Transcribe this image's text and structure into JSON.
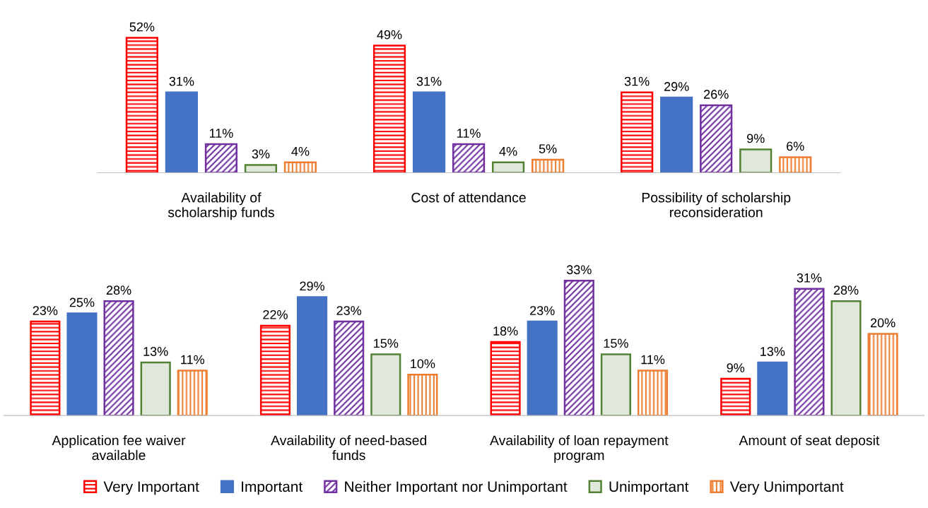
{
  "chart_data": [
    {
      "type": "bar",
      "categories": [
        "Availability of\nscholarship funds",
        "Cost of attendance",
        "Possibility of scholarship\nreconsideration"
      ],
      "series": [
        {
          "color": "#ff0000",
          "values": [
            52,
            49,
            31
          ],
          "value_labels": [
            "52%",
            "49%",
            "31%"
          ]
        },
        {
          "color": "#4472c4",
          "values": [
            31,
            31,
            29
          ],
          "value_labels": [
            "31%",
            "31%",
            "29%"
          ]
        },
        {
          "color": "#7030a0",
          "values": [
            11,
            11,
            26
          ],
          "value_labels": [
            "11%",
            "11%",
            "26%"
          ]
        },
        {
          "color": "#548235",
          "values": [
            3,
            4,
            9
          ],
          "value_labels": [
            "3%",
            "4%",
            "9%"
          ]
        },
        {
          "color": "#ed7d31",
          "values": [
            4,
            5,
            6
          ],
          "value_labels": [
            "4%",
            "5%",
            "6%"
          ]
        }
      ],
      "legend": false,
      "grid": false
    },
    {
      "type": "bar",
      "categories": [
        "Application fee waiver\navailable",
        "Availability of need-based\nfunds",
        "Availability of loan repayment\nprogram",
        "Amount of seat deposit"
      ],
      "series": [
        {
          "name": "Very Important",
          "color": "#ff0000",
          "values": [
            23,
            22,
            18,
            9
          ],
          "value_labels": [
            "23%",
            "22%",
            "18%",
            "9%"
          ]
        },
        {
          "name": "Important",
          "color": "#4472c4",
          "values": [
            25,
            29,
            23,
            13
          ],
          "value_labels": [
            "25%",
            "29%",
            "23%",
            "13%"
          ]
        },
        {
          "name": "Neither Important nor Unimportant",
          "color": "#7030a0",
          "values": [
            28,
            23,
            33,
            31
          ],
          "value_labels": [
            "28%",
            "23%",
            "33%",
            "31%"
          ]
        },
        {
          "name": "Unimportant",
          "color": "#548235",
          "values": [
            13,
            15,
            15,
            28
          ],
          "value_labels": [
            "13%",
            "15%",
            "15%",
            "28%"
          ]
        },
        {
          "name": "Very Unimportant",
          "color": "#ed7d31",
          "values": [
            11,
            10,
            11,
            20
          ],
          "value_labels": [
            "11%",
            "10%",
            "11%",
            "20%"
          ]
        }
      ],
      "legend": "bottom",
      "grid": false
    }
  ]
}
